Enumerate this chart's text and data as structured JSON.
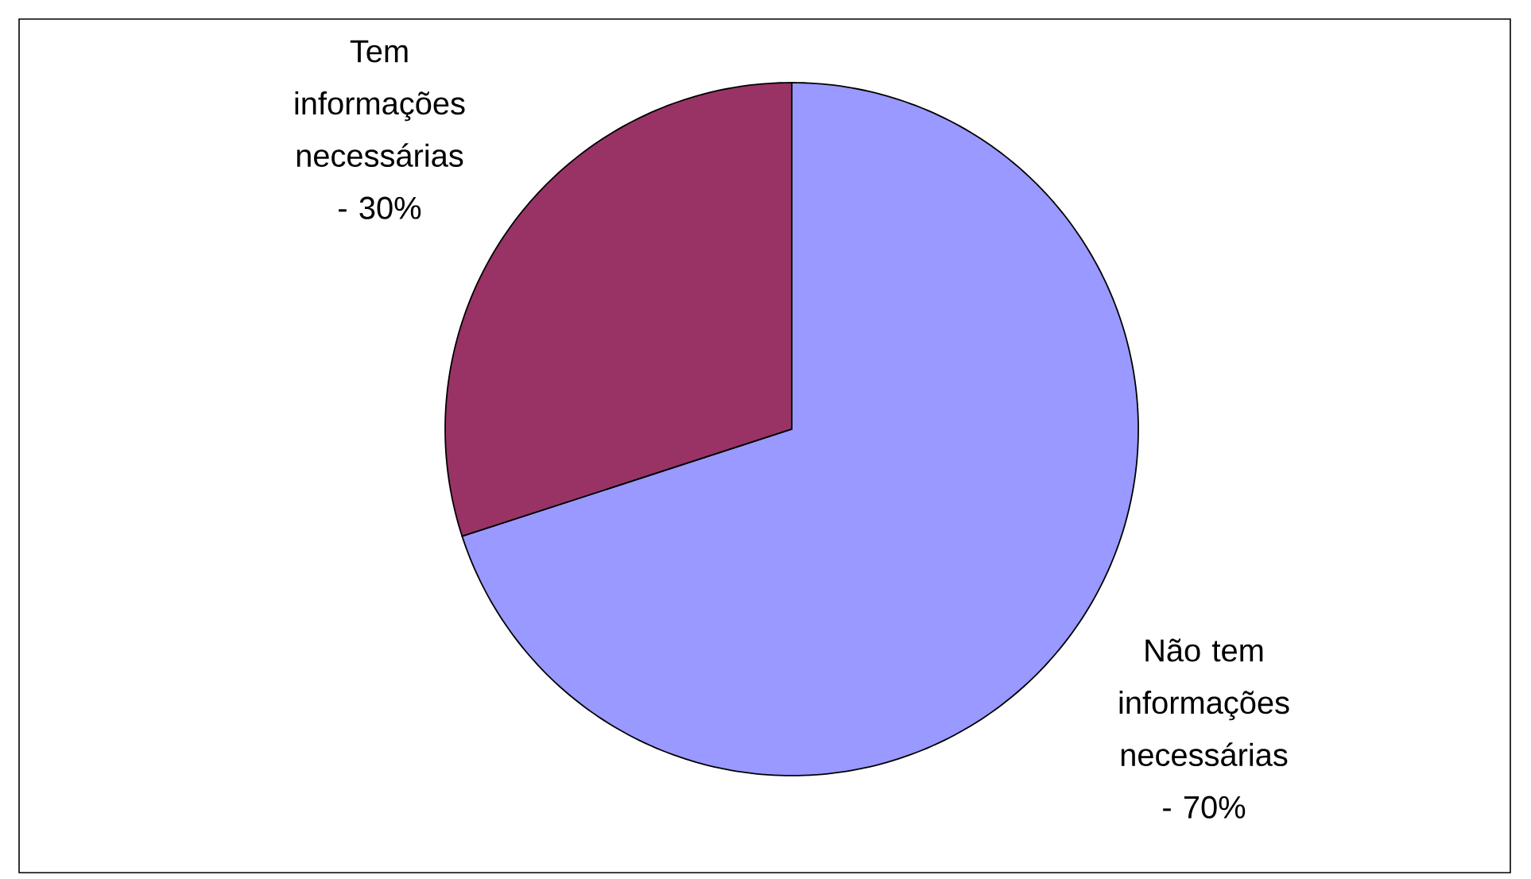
{
  "chart_data": {
    "type": "pie",
    "categories": [
      "Não tem informações necessárias - 70%",
      "Tem informações necessárias - 30%"
    ],
    "values": [
      70,
      30
    ],
    "colors": [
      "#9999ff",
      "#993366"
    ]
  }
}
